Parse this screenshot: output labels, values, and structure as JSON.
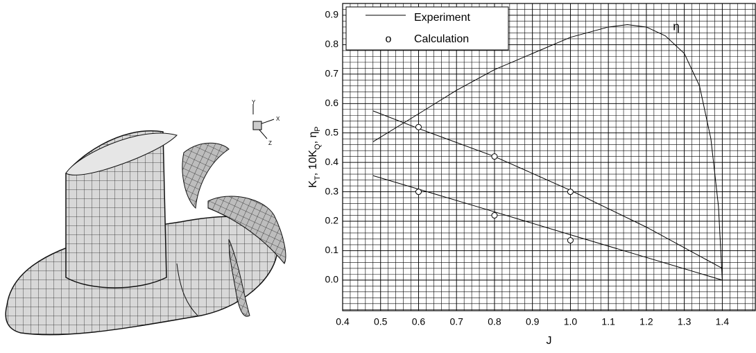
{
  "model": {
    "axes": [
      "Y",
      "X",
      "Z"
    ]
  },
  "chart_data": {
    "type": "line",
    "xlabel": "J",
    "ylabel": [
      {
        "text": "K"
      },
      {
        "text": "T",
        "sub": true
      },
      {
        "text": ", 10K"
      },
      {
        "text": "Q",
        "sub": true
      },
      {
        "text": ", η"
      },
      {
        "text": "P",
        "sub": true
      }
    ],
    "xlim": [
      0.4,
      1.487
    ],
    "ylim": [
      -0.104,
      0.94
    ],
    "xticks": [
      0.4,
      0.5,
      0.6,
      0.7,
      0.8,
      0.9,
      {
        "value": 1,
        "label": "1.0"
      },
      1.1,
      1.2,
      1.3,
      1.4
    ],
    "yticks": [
      {
        "value": 0,
        "label": "0.0"
      },
      0.1,
      0.2,
      0.3,
      0.4,
      0.5,
      0.6,
      0.7,
      0.8,
      0.9
    ],
    "grid": true,
    "legend": "upper left",
    "annotations": [
      {
        "text": "η",
        "x": 1.27,
        "y": 0.86
      }
    ],
    "series": [
      {
        "name": "Experiment",
        "color": "#000000",
        "lines": [
          {
            "x": [
              0.48,
              0.6,
              0.7,
              0.8,
              0.9,
              1.0,
              1.1,
              1.15,
              1.2,
              1.25,
              1.3,
              1.34,
              1.37,
              1.39,
              1.4
            ],
            "values": [
              0.47,
              0.565,
              0.645,
              0.715,
              0.77,
              0.825,
              0.86,
              0.868,
              0.86,
              0.83,
              0.77,
              0.66,
              0.48,
              0.25,
              0.0
            ]
          },
          {
            "x": [
              0.48,
              0.6,
              0.8,
              1.0,
              1.2,
              1.4
            ],
            "values": [
              0.575,
              0.515,
              0.42,
              0.305,
              0.18,
              0.04
            ]
          },
          {
            "x": [
              0.48,
              0.6,
              0.8,
              1.0,
              1.2,
              1.4
            ],
            "values": [
              0.355,
              0.309,
              0.232,
              0.154,
              0.077,
              0.0
            ]
          }
        ]
      },
      {
        "name": "Calculation",
        "symbol": "o",
        "color": "#000000",
        "x": [
          0.6,
          0.8,
          1.0,
          0.6,
          0.8,
          1.0
        ],
        "values": [
          0.52,
          0.42,
          0.3,
          0.3,
          0.22,
          0.135
        ]
      }
    ]
  }
}
